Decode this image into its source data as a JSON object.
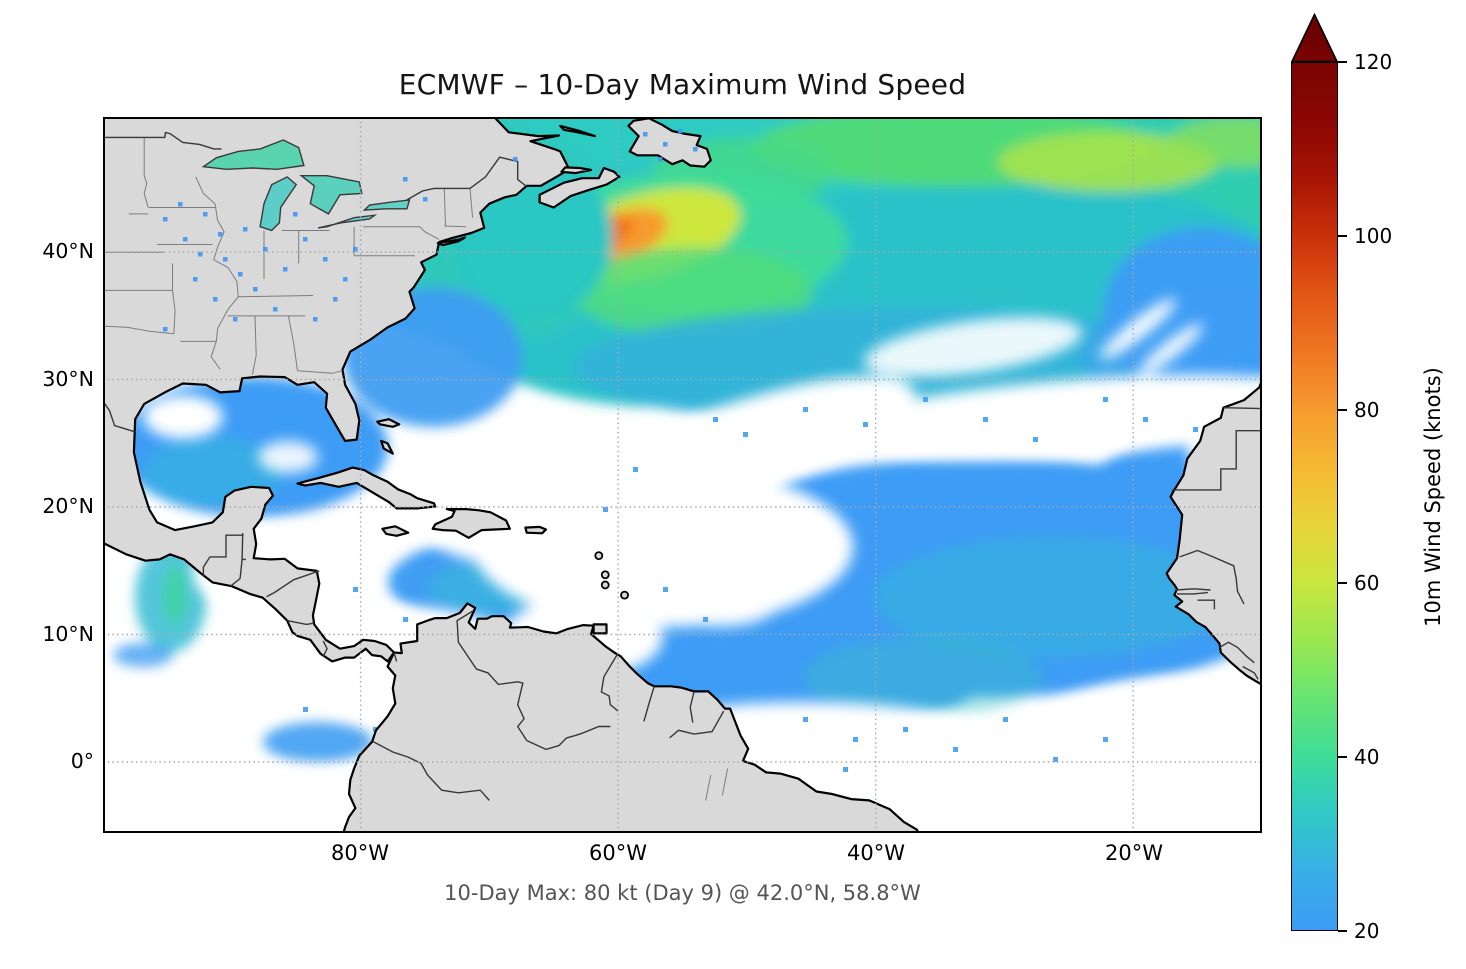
{
  "title": "ECMWF – 10-Day Maximum Wind Speed",
  "caption": "10-Day Max: 80 kt (Day 9) @ 42.0°N, 58.8°W",
  "map": {
    "y_ticks": [
      "40°N",
      "30°N",
      "20°N",
      "10°N",
      "0°"
    ],
    "x_ticks": [
      "80°W",
      "60°W",
      "40°W",
      "20°W"
    ]
  },
  "colorbar": {
    "label": "10m Wind Speed (knots)",
    "ticks": [
      "120",
      "100",
      "80",
      "60",
      "40",
      "20"
    ],
    "range_min": 20,
    "range_max": 120,
    "extend": "max"
  },
  "palette": {
    "land": "#d9d9d9",
    "coast": "#000000",
    "state_border": "#7d7d7d",
    "country_border": "#383838",
    "ocean_masked": "#ffffff",
    "grid": "#a8a8a8",
    "wind_20": "#3c9cf5",
    "wind_30": "#2fcbc3",
    "wind_40": "#3edd98",
    "wind_60": "#c8e63e",
    "wind_80": "#f69b2e",
    "wind_100": "#c9310a",
    "wind_120": "#7a0403"
  },
  "chart_data": {
    "type": "heatmap",
    "title": "ECMWF – 10-Day Maximum Wind Speed",
    "units": "knots",
    "field": "10m wind speed, 10-day maximum",
    "colorbar": {
      "label": "10m Wind Speed (knots)",
      "min": 20,
      "max": 120,
      "ticks": [
        20,
        40,
        60,
        80,
        100,
        120
      ],
      "extend": "max",
      "masked_below": 20
    },
    "x_axis_ticks": [
      "80°W",
      "60°W",
      "40°W",
      "20°W"
    ],
    "y_axis_ticks": [
      "40°N",
      "30°N",
      "20°N",
      "10°N",
      "0°"
    ],
    "grid": "dotted",
    "annotation": "10-Day Max: 80 kt (Day 9) @ 42.0°N, 58.8°W",
    "max_point": {
      "wind_kt": 80,
      "day": 9,
      "lat_deg_n": 42.0,
      "lon_deg_w": 58.8
    }
  }
}
